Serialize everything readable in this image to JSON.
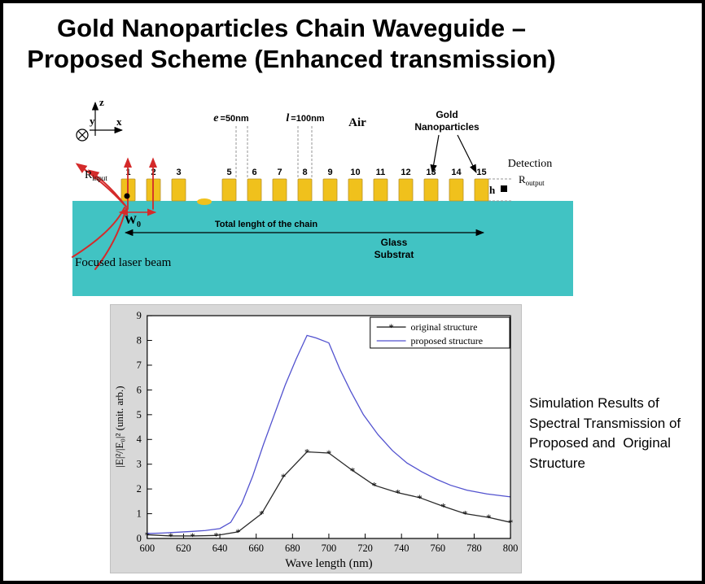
{
  "title": {
    "line1": "Gold Nanoparticles Chain Waveguide –",
    "line2": "Proposed Scheme (Enhanced transmission)"
  },
  "schematic": {
    "axes": {
      "x": "x",
      "y": "y",
      "z": "z"
    },
    "particle_numbers": [
      "1",
      "2",
      "3",
      "5",
      "6",
      "7",
      "8",
      "9",
      "10",
      "11",
      "12",
      "13",
      "14",
      "15"
    ],
    "labels": {
      "e": {
        "sym": "e",
        "val": "=50nm"
      },
      "l": {
        "sym": "l",
        "val": "=100nm"
      },
      "air": "Air",
      "gold_line1": "Gold",
      "gold_line2": "Nanoparticles",
      "detection": "Detection",
      "r_output": {
        "base": "R",
        "sub": "output"
      },
      "r_input": {
        "base": "R",
        "sub": "input"
      },
      "h": "h",
      "w0": {
        "base": "W",
        "sub": "0"
      },
      "total_length": "Total lenght of the chain",
      "glass_line1": "Glass",
      "glass_line2": "Substrat",
      "focused_laser": "Focused laser beam"
    },
    "colors": {
      "substrate": "#41c3c3",
      "particle": "#f0c11c",
      "beam": "#d42a2a"
    }
  },
  "chart_data": {
    "type": "line",
    "title": "",
    "xlabel": "Wave length (nm)",
    "ylabel": "|E|²/|E₀|² (unit. arb.)",
    "xlim": [
      600,
      800
    ],
    "ylim": [
      0,
      9
    ],
    "xticks": [
      600,
      620,
      640,
      660,
      680,
      700,
      720,
      740,
      760,
      780,
      800
    ],
    "yticks": [
      0,
      1,
      2,
      3,
      4,
      5,
      6,
      7,
      8,
      9
    ],
    "grid": false,
    "legend_position": "top-right",
    "series": [
      {
        "name": "original structure",
        "color": "#2a2a2a",
        "marker": "*",
        "points": [
          [
            600,
            0.15
          ],
          [
            613,
            0.1
          ],
          [
            625,
            0.1
          ],
          [
            638,
            0.12
          ],
          [
            650,
            0.27
          ],
          [
            663,
            1.0
          ],
          [
            675,
            2.5
          ],
          [
            688,
            3.5
          ],
          [
            700,
            3.45
          ],
          [
            713,
            2.75
          ],
          [
            725,
            2.15
          ],
          [
            738,
            1.85
          ],
          [
            750,
            1.65
          ],
          [
            763,
            1.3
          ],
          [
            775,
            1.0
          ],
          [
            788,
            0.85
          ],
          [
            800,
            0.65
          ]
        ]
      },
      {
        "name": "proposed structure",
        "color": "#5252cf",
        "marker": null,
        "points": [
          [
            600,
            0.2
          ],
          [
            608,
            0.22
          ],
          [
            616,
            0.25
          ],
          [
            624,
            0.28
          ],
          [
            632,
            0.32
          ],
          [
            640,
            0.4
          ],
          [
            646,
            0.65
          ],
          [
            652,
            1.4
          ],
          [
            658,
            2.5
          ],
          [
            664,
            3.8
          ],
          [
            670,
            5.0
          ],
          [
            676,
            6.2
          ],
          [
            682,
            7.25
          ],
          [
            688,
            8.2
          ],
          [
            693,
            8.1
          ],
          [
            700,
            7.9
          ],
          [
            706,
            6.85
          ],
          [
            712,
            5.95
          ],
          [
            719,
            5.0
          ],
          [
            727,
            4.2
          ],
          [
            735,
            3.55
          ],
          [
            743,
            3.05
          ],
          [
            751,
            2.7
          ],
          [
            759,
            2.4
          ],
          [
            767,
            2.15
          ],
          [
            776,
            1.95
          ],
          [
            787,
            1.8
          ],
          [
            800,
            1.68
          ]
        ]
      }
    ]
  },
  "caption": {
    "text": "Simulation Results of\nSpectral Transmission of\nProposed and  Original\nStructure"
  }
}
